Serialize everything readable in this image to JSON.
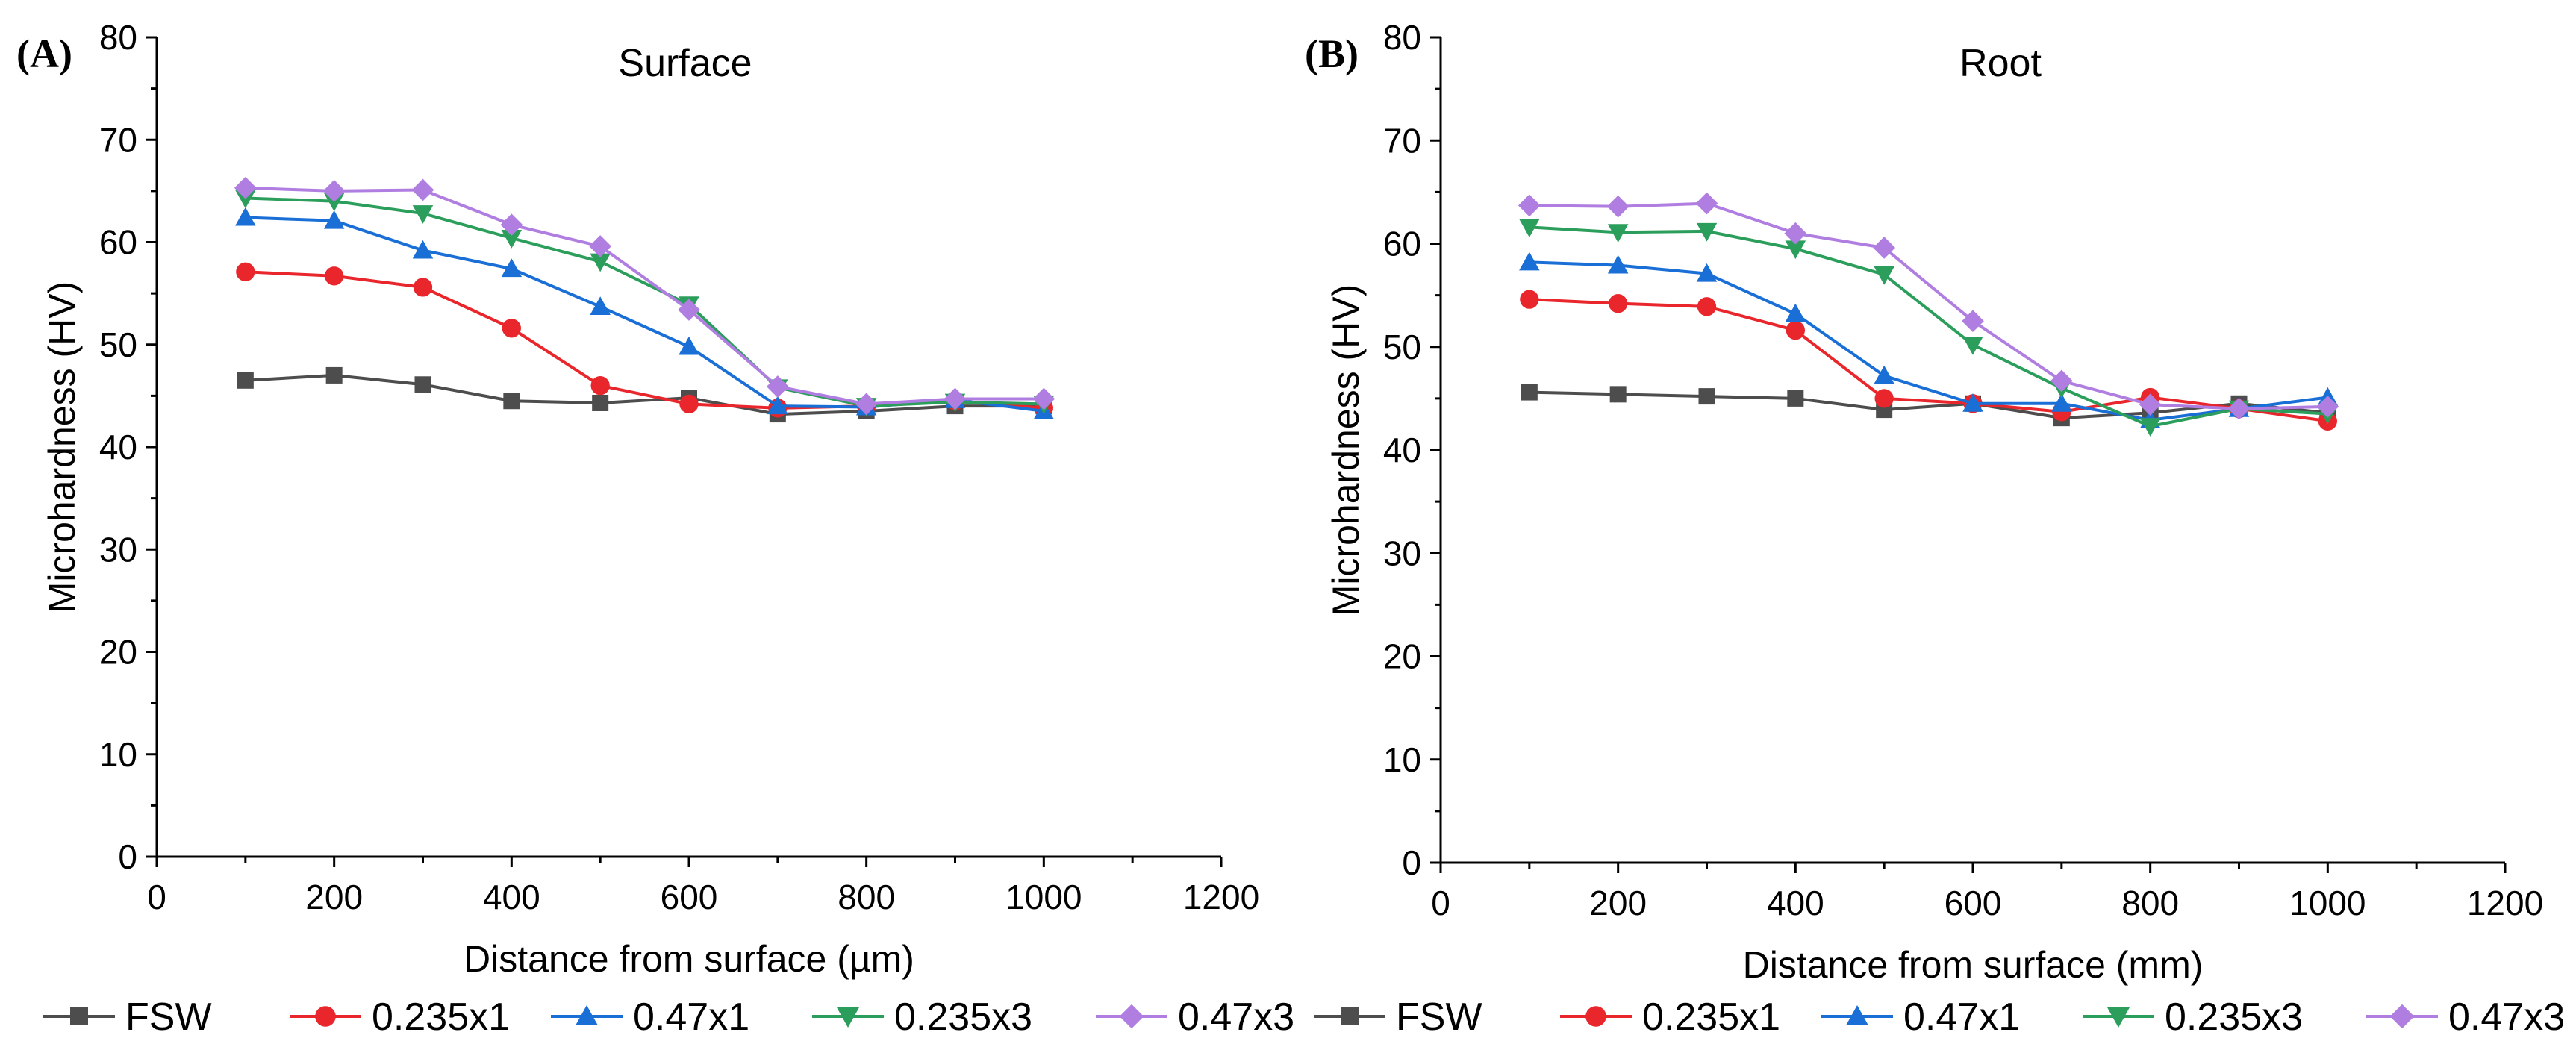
{
  "chart_data": [
    {
      "type": "line",
      "panel_label": "(A)",
      "title": "Surface",
      "xlabel": "Distance from surface (µm)",
      "ylabel": "Microhardness (HV)",
      "xlim": [
        0,
        1200
      ],
      "ylim": [
        0,
        80
      ],
      "xticks": [
        "0",
        "200",
        "400",
        "600",
        "800",
        "1000",
        "1200"
      ],
      "yticks": [
        "0",
        "10",
        "20",
        "30",
        "40",
        "50",
        "60",
        "70",
        "80"
      ],
      "legend_position": "bottom",
      "x": [
        100,
        200,
        300,
        400,
        500,
        600,
        700,
        800,
        900,
        1000
      ],
      "series": [
        {
          "name": "FSW",
          "color": "#4d4d4d",
          "marker": "square",
          "values": [
            46.5,
            47.0,
            46.1,
            44.5,
            44.3,
            44.8,
            43.2,
            43.5,
            44.0,
            44.0
          ]
        },
        {
          "name": "0.235x1",
          "color": "#e8262b",
          "marker": "circle",
          "values": [
            57.1,
            56.7,
            55.6,
            51.6,
            46.0,
            44.2,
            43.8,
            44.0,
            44.5,
            43.8
          ]
        },
        {
          "name": "0.47x1",
          "color": "#1a6fd6",
          "marker": "triangle-up",
          "values": [
            62.4,
            62.1,
            59.2,
            57.4,
            53.7,
            49.8,
            44.0,
            43.9,
            44.6,
            43.5
          ]
        },
        {
          "name": "0.235x3",
          "color": "#2c9e5c",
          "marker": "triangle-down",
          "values": [
            64.3,
            64.0,
            62.8,
            60.4,
            58.1,
            53.9,
            45.8,
            44.0,
            44.4,
            44.2
          ]
        },
        {
          "name": "0.47x3",
          "color": "#b07ee0",
          "marker": "diamond",
          "values": [
            65.3,
            65.0,
            65.1,
            61.7,
            59.6,
            53.4,
            45.9,
            44.2,
            44.7,
            44.7
          ]
        }
      ]
    },
    {
      "type": "line",
      "panel_label": "(B)",
      "title": "Root",
      "xlabel": "Distance from surface (mm)",
      "ylabel": "Microhardness (HV)",
      "xlim": [
        0,
        1200
      ],
      "ylim": [
        0,
        80
      ],
      "xticks": [
        "0",
        "200",
        "400",
        "600",
        "800",
        "1000",
        "1200"
      ],
      "yticks": [
        "0",
        "10",
        "20",
        "30",
        "40",
        "50",
        "60",
        "70",
        "80"
      ],
      "legend_position": "bottom",
      "x": [
        100,
        200,
        300,
        400,
        500,
        600,
        700,
        800,
        900,
        1000
      ],
      "series": [
        {
          "name": "FSW",
          "color": "#4d4d4d",
          "marker": "square",
          "values": [
            45.6,
            45.4,
            45.2,
            45.0,
            43.9,
            44.5,
            43.1,
            43.6,
            44.5,
            43.6
          ]
        },
        {
          "name": "0.235x1",
          "color": "#e8262b",
          "marker": "circle",
          "values": [
            54.6,
            54.2,
            53.9,
            51.6,
            45.0,
            44.5,
            43.7,
            45.1,
            44.0,
            42.8
          ]
        },
        {
          "name": "0.47x1",
          "color": "#1a6fd6",
          "marker": "triangle-up",
          "values": [
            58.2,
            57.9,
            57.1,
            53.2,
            47.2,
            44.5,
            44.5,
            42.9,
            44.0,
            45.1
          ]
        },
        {
          "name": "0.235x3",
          "color": "#2c9e5c",
          "marker": "triangle-down",
          "values": [
            61.6,
            61.1,
            61.2,
            59.5,
            57.0,
            50.2,
            46.0,
            42.3,
            44.0,
            43.5
          ]
        },
        {
          "name": "0.47x3",
          "color": "#b07ee0",
          "marker": "diamond",
          "values": [
            63.7,
            63.6,
            63.9,
            61.0,
            59.6,
            52.5,
            46.7,
            44.4,
            44.0,
            44.2
          ]
        }
      ]
    }
  ]
}
